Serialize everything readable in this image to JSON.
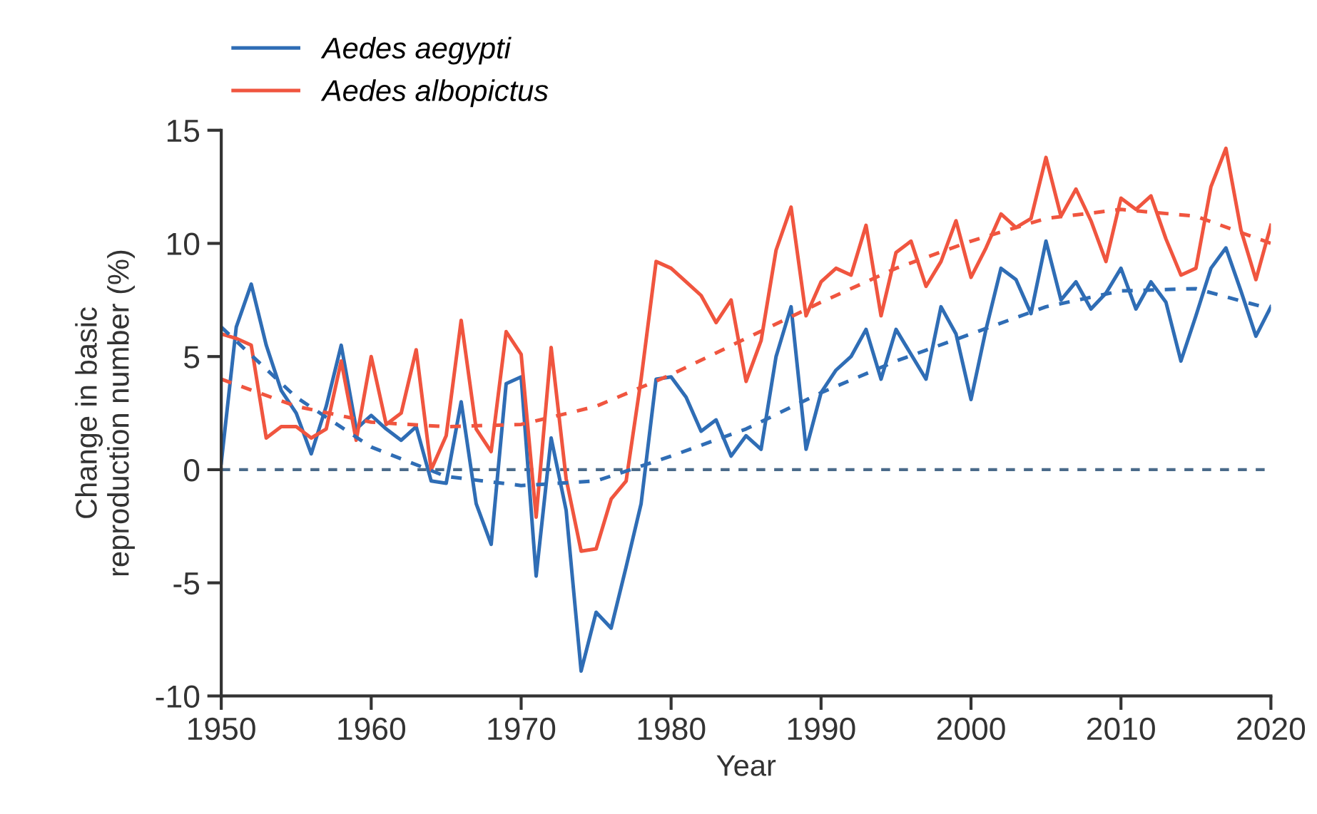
{
  "chart_data": {
    "type": "line",
    "xlabel": "Year",
    "ylabel": "Change in basic\nreproduction number (%)",
    "xlim": [
      1950,
      2020
    ],
    "xticks": [
      1950,
      1960,
      1970,
      1980,
      1990,
      2000,
      2010,
      2020
    ],
    "ylim": [
      -10,
      15
    ],
    "yticks": [
      -10,
      -5,
      0,
      5,
      10,
      15
    ],
    "grid": false,
    "legend": "top left",
    "marker": "none",
    "x": [
      1950,
      1951,
      1952,
      1953,
      1954,
      1955,
      1956,
      1957,
      1958,
      1959,
      1960,
      1961,
      1962,
      1963,
      1964,
      1965,
      1966,
      1967,
      1968,
      1969,
      1970,
      1971,
      1972,
      1973,
      1974,
      1975,
      1976,
      1977,
      1978,
      1979,
      1980,
      1981,
      1982,
      1983,
      1984,
      1985,
      1986,
      1987,
      1988,
      1989,
      1990,
      1991,
      1992,
      1993,
      1994,
      1995,
      1996,
      1997,
      1998,
      1999,
      2000,
      2001,
      2002,
      2003,
      2004,
      2005,
      2006,
      2007,
      2008,
      2009,
      2010,
      2011,
      2012,
      2013,
      2014,
      2015,
      2016,
      2017,
      2018,
      2019,
      2020
    ],
    "ref_lines": [
      {
        "axis": "y",
        "value": 0,
        "color": "#4a6a8a",
        "line_style": "dashed"
      }
    ],
    "series": [
      {
        "name": "Aedes aegypti",
        "color": "#2f6db5",
        "line_style": "solid",
        "values": [
          0.3,
          6.3,
          8.2,
          5.5,
          3.5,
          2.5,
          0.7,
          2.8,
          5.5,
          1.8,
          2.4,
          1.8,
          1.3,
          1.9,
          -0.5,
          -0.6,
          3.0,
          -1.5,
          -3.3,
          3.8,
          4.1,
          -4.7,
          1.4,
          -1.8,
          -8.9,
          -6.3,
          -7.0,
          -4.3,
          -1.5,
          4.0,
          4.1,
          3.2,
          1.7,
          2.2,
          0.6,
          1.5,
          0.9,
          5.0,
          7.2,
          0.9,
          3.4,
          4.4,
          5.0,
          6.2,
          4.0,
          6.2,
          5.1,
          4.0,
          7.2,
          6.0,
          3.1,
          6.2,
          8.9,
          8.4,
          6.9,
          10.1,
          7.5,
          8.3,
          7.1,
          7.8,
          8.9,
          7.1,
          8.3,
          7.4,
          4.8,
          6.8,
          8.9,
          9.8,
          7.9,
          5.9,
          7.2
        ]
      },
      {
        "name": "Aedes albopictus",
        "color": "#f0553f",
        "line_style": "solid",
        "values": [
          6.0,
          5.8,
          5.5,
          1.4,
          1.9,
          1.9,
          1.4,
          1.8,
          4.8,
          1.3,
          5.0,
          2.0,
          2.5,
          5.3,
          0.0,
          1.5,
          6.6,
          1.8,
          0.8,
          6.1,
          5.1,
          -2.1,
          5.4,
          -0.4,
          -3.6,
          -3.5,
          -1.3,
          -0.5,
          4.0,
          9.2,
          8.9,
          8.3,
          7.7,
          6.5,
          7.5,
          3.9,
          5.7,
          9.7,
          11.6,
          6.8,
          8.3,
          8.9,
          8.6,
          10.8,
          6.8,
          9.6,
          10.1,
          8.1,
          9.2,
          11.0,
          8.5,
          9.8,
          11.3,
          10.7,
          11.1,
          13.8,
          11.2,
          12.4,
          11.0,
          9.2,
          12.0,
          11.5,
          12.1,
          10.2,
          8.6,
          8.9,
          12.5,
          14.2,
          10.6,
          8.4,
          10.8
        ]
      },
      {
        "color": "#2f6db5",
        "line_style": "dashed",
        "x": [
          1950,
          1955,
          1960,
          1965,
          1970,
          1975,
          1980,
          1985,
          1990,
          1995,
          2000,
          2005,
          2010,
          2015,
          2020
        ],
        "values": [
          6.3,
          3.2,
          1.0,
          -0.3,
          -0.7,
          -0.5,
          0.6,
          1.8,
          3.4,
          4.8,
          6.0,
          7.2,
          7.9,
          8.0,
          7.1
        ]
      },
      {
        "color": "#f0553f",
        "line_style": "dashed",
        "x": [
          1950,
          1955,
          1960,
          1965,
          1970,
          1975,
          1980,
          1985,
          1990,
          1995,
          2000,
          2005,
          2010,
          2015,
          2020
        ],
        "values": [
          4.0,
          2.8,
          2.1,
          1.9,
          2.0,
          2.8,
          4.2,
          5.8,
          7.4,
          8.9,
          10.1,
          11.1,
          11.5,
          11.2,
          10.0
        ]
      }
    ]
  }
}
